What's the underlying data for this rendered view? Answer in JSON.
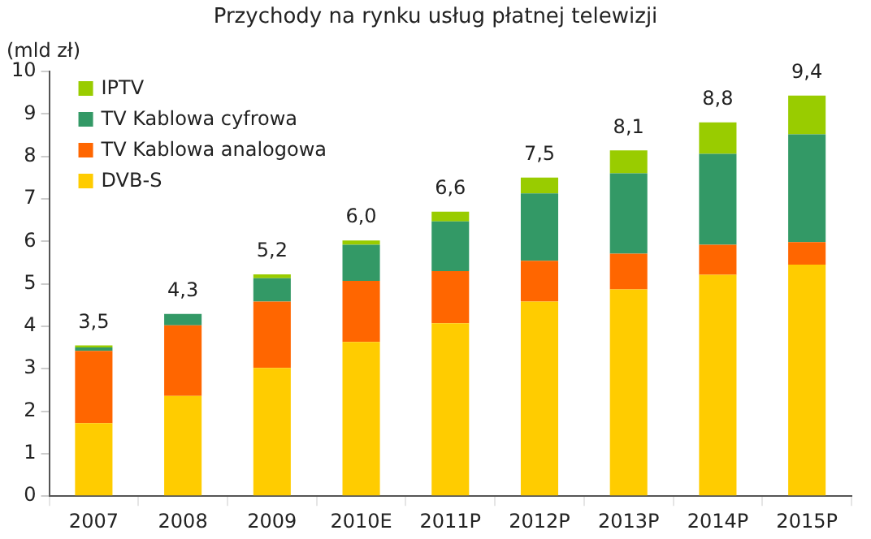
{
  "chart_data": {
    "type": "bar",
    "title": "Przychody na rynku usług płatnej telewizji",
    "ylabel": "(mld zł)",
    "categories": [
      "2007",
      "2008",
      "2009",
      "2010E",
      "2011P",
      "2012P",
      "2013P",
      "2014P",
      "2015P"
    ],
    "stacked": true,
    "series": [
      {
        "name": "DVB-S",
        "color": "#ffcc00",
        "values": [
          1.72,
          2.36,
          3.02,
          3.63,
          4.07,
          4.58,
          4.87,
          5.21,
          5.45
        ]
      },
      {
        "name": "TV Kablowa analogowa",
        "color": "#ff6600",
        "values": [
          1.7,
          1.66,
          1.56,
          1.44,
          1.23,
          0.96,
          0.84,
          0.71,
          0.53
        ]
      },
      {
        "name": "TV Kablowa cyfrowa",
        "color": "#339966",
        "values": [
          0.08,
          0.27,
          0.55,
          0.85,
          1.17,
          1.59,
          1.89,
          2.14,
          2.54
        ]
      },
      {
        "name": "IPTV",
        "color": "#99cc00",
        "values": [
          0.05,
          0,
          0.09,
          0.1,
          0.23,
          0.37,
          0.54,
          0.74,
          0.91
        ]
      }
    ],
    "totals": [
      "3,5",
      "4,3",
      "5,2",
      "6,0",
      "6,6",
      "7,5",
      "8,1",
      "8,8",
      "9,4"
    ],
    "ylim": [
      0,
      10
    ],
    "yticks": [
      0,
      1,
      2,
      3,
      4,
      5,
      6,
      7,
      8,
      9,
      10
    ],
    "grid": false,
    "legend": "top left"
  }
}
